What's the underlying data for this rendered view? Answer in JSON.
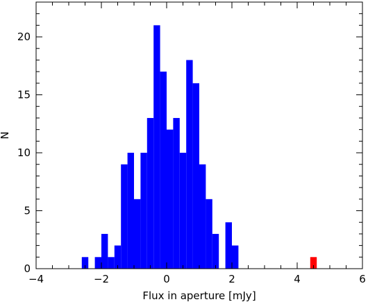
{
  "chart_data": {
    "type": "bar",
    "xlabel": "Flux in aperture [mJy]",
    "ylabel": "N",
    "xlim": [
      -4,
      6
    ],
    "ylim": [
      0,
      23
    ],
    "bin_width": 0.2,
    "xticks": [
      -4,
      -2,
      0,
      2,
      4,
      6
    ],
    "xtick_labels": [
      "−4",
      "−2",
      "0",
      "2",
      "4",
      "6"
    ],
    "yticks": [
      0,
      5,
      10,
      15,
      20
    ],
    "ytick_labels": [
      "0",
      "5",
      "10",
      "15",
      "20"
    ],
    "grid": false,
    "series": [
      {
        "color": "#0000ff",
        "x": [
          -2.6,
          -2.4,
          -2.2,
          -2.0,
          -1.8,
          -1.6,
          -1.4,
          -1.2,
          -1.0,
          -0.8,
          -0.6,
          -0.4,
          -0.2,
          0.0,
          0.2,
          0.4,
          0.6,
          0.8,
          1.0,
          1.2,
          1.4,
          1.6,
          1.8,
          2.0
        ],
        "values": [
          1,
          0,
          1,
          3,
          1,
          2,
          9,
          10,
          6,
          10,
          13,
          21,
          17,
          12,
          13,
          10,
          18,
          16,
          9,
          6,
          3,
          0,
          4,
          2
        ]
      },
      {
        "color": "#ff0000",
        "x": [
          4.4
        ],
        "values": [
          1
        ]
      }
    ]
  }
}
